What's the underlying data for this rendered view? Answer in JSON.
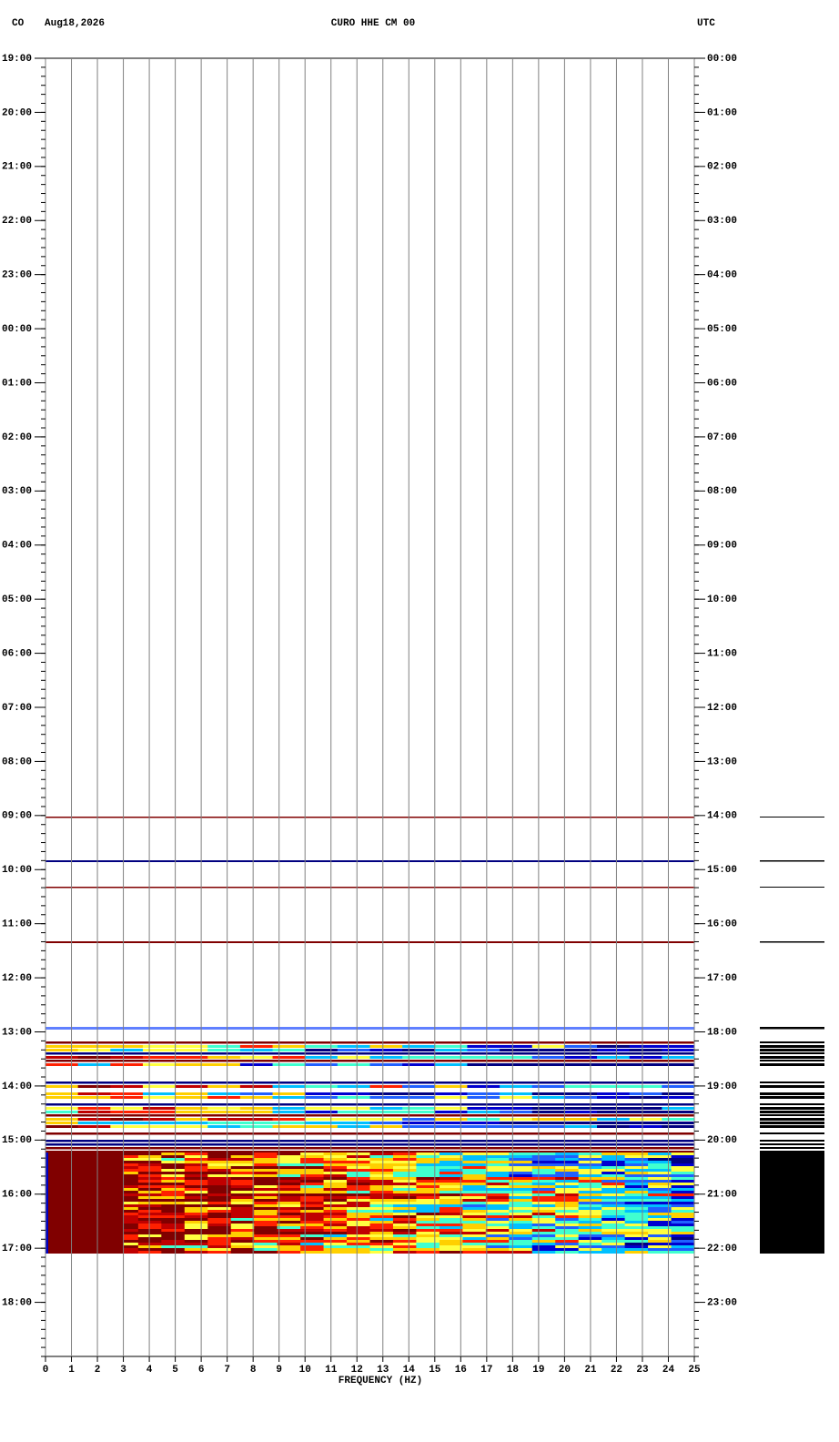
{
  "chart_data": {
    "type": "spectrogram",
    "network": "CO",
    "date": "Aug18,2026",
    "title": "CURO HHE CM 00",
    "timezone": "UTC",
    "xlabel": "FREQUENCY (HZ)",
    "xlim": [
      0,
      25
    ],
    "xticks": [
      0,
      1,
      2,
      3,
      4,
      5,
      6,
      7,
      8,
      9,
      10,
      11,
      12,
      13,
      14,
      15,
      16,
      17,
      18,
      19,
      20,
      21,
      22,
      23,
      24,
      25
    ],
    "ylim": [
      0,
      24
    ],
    "yticks": [
      {
        "value": 0,
        "label": "19:00"
      },
      {
        "value": 1,
        "label": "20:00"
      },
      {
        "value": 2,
        "label": "21:00"
      },
      {
        "value": 3,
        "label": "22:00"
      },
      {
        "value": 4,
        "label": "23:00"
      },
      {
        "value": 5,
        "label": "00:00"
      },
      {
        "value": 6,
        "label": "01:00"
      },
      {
        "value": 7,
        "label": "02:00"
      },
      {
        "value": 8,
        "label": "03:00"
      },
      {
        "value": 9,
        "label": "04:00"
      },
      {
        "value": 10,
        "label": "05:00"
      },
      {
        "value": 11,
        "label": "06:00"
      },
      {
        "value": 12,
        "label": "07:00"
      },
      {
        "value": 13,
        "label": "08:00"
      },
      {
        "value": 14,
        "label": "09:00"
      },
      {
        "value": 15,
        "label": "10:00"
      },
      {
        "value": 16,
        "label": "11:00"
      },
      {
        "value": 17,
        "label": "12:00"
      },
      {
        "value": 18,
        "label": "13:00"
      },
      {
        "value": 19,
        "label": "14:00"
      },
      {
        "value": 20,
        "label": "15:00"
      },
      {
        "value": 21,
        "label": "16:00"
      },
      {
        "value": 22,
        "label": "17:00"
      },
      {
        "value": 23,
        "label": "18:00"
      }
    ],
    "y2lim": [
      0,
      24
    ],
    "y2ticks": [
      {
        "value": 0,
        "label": "00:00"
      },
      {
        "value": 1,
        "label": "01:00"
      },
      {
        "value": 2,
        "label": "02:00"
      },
      {
        "value": 3,
        "label": "03:00"
      },
      {
        "value": 4,
        "label": "04:00"
      },
      {
        "value": 5,
        "label": "05:00"
      },
      {
        "value": 6,
        "label": "06:00"
      },
      {
        "value": 7,
        "label": "07:00"
      },
      {
        "value": 8,
        "label": "08:00"
      },
      {
        "value": 9,
        "label": "09:00"
      },
      {
        "value": 10,
        "label": "10:00"
      },
      {
        "value": 11,
        "label": "11:00"
      },
      {
        "value": 12,
        "label": "12:00"
      },
      {
        "value": 13,
        "label": "13:00"
      },
      {
        "value": 14,
        "label": "14:00"
      },
      {
        "value": 15,
        "label": "15:00"
      },
      {
        "value": 16,
        "label": "16:00"
      },
      {
        "value": 17,
        "label": "17:00"
      },
      {
        "value": 18,
        "label": "18:00"
      },
      {
        "value": 19,
        "label": "19:00"
      },
      {
        "value": 20,
        "label": "20:00"
      },
      {
        "value": 21,
        "label": "21:00"
      },
      {
        "value": 22,
        "label": "22:00"
      },
      {
        "value": 23,
        "label": "23:00"
      }
    ],
    "grid": true
  }
}
